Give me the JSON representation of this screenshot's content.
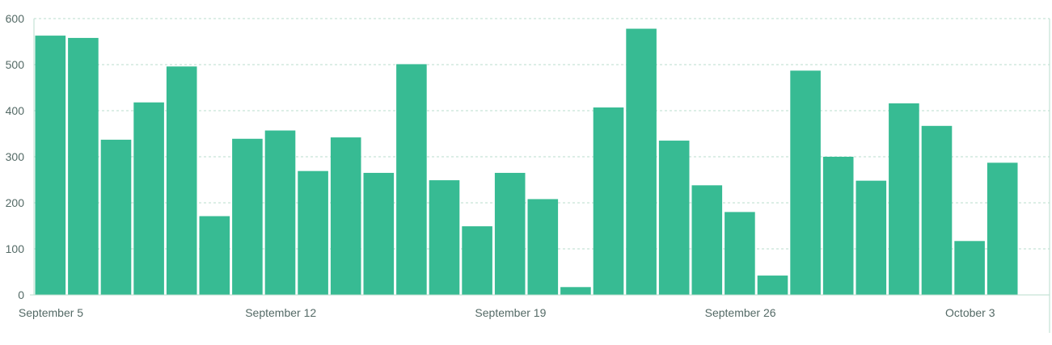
{
  "colors": {
    "bar": "#37bb93",
    "grid": "#b9dccd",
    "tick_text": "#546a66"
  },
  "chart_data": {
    "type": "bar",
    "title": "",
    "xlabel": "",
    "ylabel": "",
    "ylim": [
      0,
      600
    ],
    "y_ticks": [
      0,
      100,
      200,
      300,
      400,
      500,
      600
    ],
    "grid": true,
    "legend": "none",
    "x_tick_labels": [
      {
        "label": "September 5",
        "category_index": 0
      },
      {
        "label": "September 12",
        "category_index": 7
      },
      {
        "label": "September 19",
        "category_index": 14
      },
      {
        "label": "September 26",
        "category_index": 21
      },
      {
        "label": "October 3",
        "category_index": 28
      }
    ],
    "categories": [
      "Sep 5",
      "Sep 6",
      "Sep 7",
      "Sep 8",
      "Sep 9",
      "Sep 10",
      "Sep 11",
      "Sep 12",
      "Sep 13",
      "Sep 14",
      "Sep 15",
      "Sep 16",
      "Sep 17",
      "Sep 18",
      "Sep 19",
      "Sep 20",
      "Sep 21",
      "Sep 22",
      "Sep 23",
      "Sep 24",
      "Sep 25",
      "Sep 26",
      "Sep 27",
      "Sep 28",
      "Sep 29",
      "Sep 30",
      "Oct 1",
      "Oct 2",
      "Oct 3",
      "Oct 4"
    ],
    "values": [
      563,
      558,
      337,
      418,
      496,
      171,
      339,
      357,
      269,
      342,
      265,
      501,
      249,
      149,
      265,
      208,
      17,
      407,
      578,
      335,
      238,
      180,
      42,
      487,
      300,
      248,
      416,
      367,
      117,
      287
    ]
  }
}
